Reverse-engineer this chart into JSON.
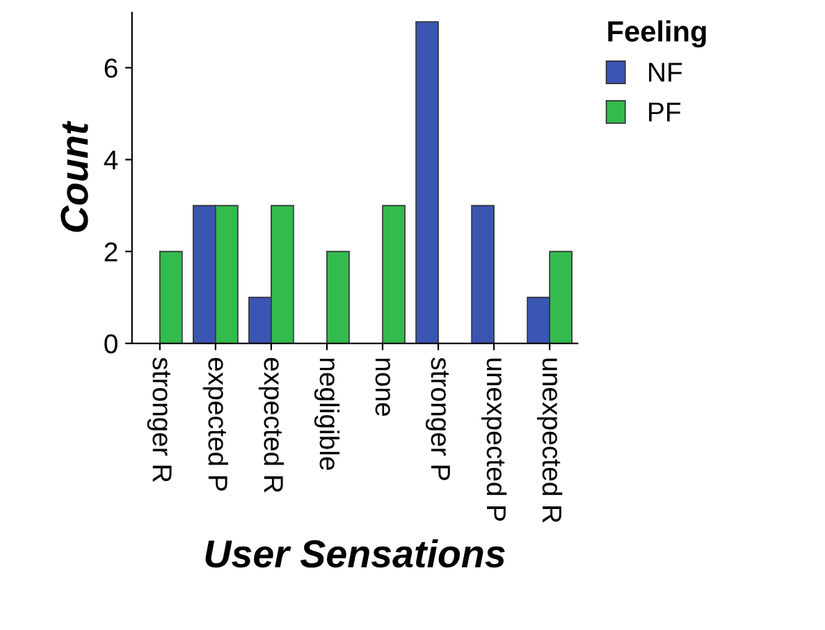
{
  "chart_data": {
    "type": "bar",
    "xlabel": "User Sensations",
    "ylabel": "Count",
    "legend_title": "Feeling",
    "categories": [
      "stronger R",
      "expected P",
      "expected R",
      "negligible",
      "none",
      "stronger P",
      "unexpected P",
      "unexpected R"
    ],
    "series": [
      {
        "name": "NF",
        "color": "#3b55b3",
        "values": [
          null,
          3,
          1,
          null,
          null,
          7,
          3,
          1
        ]
      },
      {
        "name": "PF",
        "color": "#33bb4d",
        "values": [
          2,
          3,
          3,
          2,
          3,
          null,
          null,
          2
        ]
      }
    ],
    "ylim": [
      0,
      7.2
    ],
    "yticks": [
      0,
      2,
      4,
      6
    ],
    "grid": false,
    "legend": "top right"
  }
}
